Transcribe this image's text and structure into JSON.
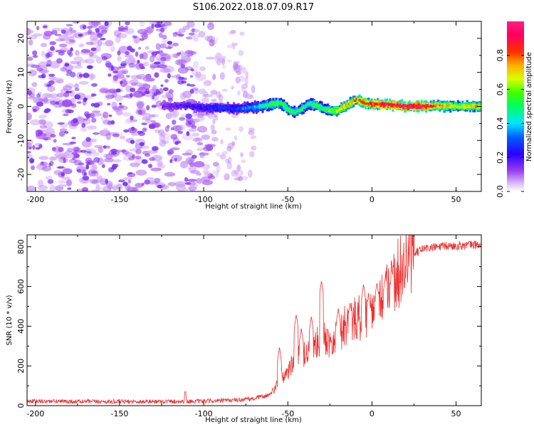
{
  "title": "S106.2022.018.07.09.R17",
  "colors": {
    "snr_line": "#ee3030",
    "axis": "#000000",
    "background": "#ffffff"
  },
  "chart_data": [
    {
      "type": "heatmap",
      "name": "spectrogram",
      "xlabel": "Height of straight line (km)",
      "ylabel": "Frequency (Hz)",
      "xlim": [
        -205,
        65
      ],
      "ylim": [
        -25,
        25
      ],
      "xticks": [
        -200,
        -150,
        -100,
        -50,
        0,
        50
      ],
      "xtick_labels": [
        "-200",
        "-150",
        "-100",
        "-50",
        "0",
        "50"
      ],
      "yticks": [
        -20,
        -10,
        0,
        10,
        20
      ],
      "ytick_labels": [
        "-20",
        "-10",
        "0",
        "10",
        "20"
      ],
      "colormap": "rainbow (violet to red)",
      "colorbar": {
        "label": "Normalized spectral amplitude",
        "range": [
          0,
          1
        ],
        "ticks": [
          0.0,
          0.2,
          0.4,
          0.6,
          0.8
        ],
        "tick_labels": [
          "0.0",
          "0.2",
          "0.4",
          "0.6",
          "0.8"
        ]
      },
      "noise_region_km": [
        -205,
        -95
      ],
      "sparse_noise_region_km": [
        -95,
        -70
      ],
      "signal_band": {
        "start_km": -125,
        "end_km": 65,
        "center_freq_hz": [
          [
            -125,
            0.0
          ],
          [
            -110,
            0.3
          ],
          [
            -100,
            -0.6
          ],
          [
            -90,
            -0.4
          ],
          [
            -80,
            -0.7
          ],
          [
            -70,
            -0.2
          ],
          [
            -60,
            0.6
          ],
          [
            -55,
            1.0
          ],
          [
            -50,
            -1.0
          ],
          [
            -47,
            -1.8
          ],
          [
            -42,
            -0.6
          ],
          [
            -38,
            0.8
          ],
          [
            -33,
            0.2
          ],
          [
            -28,
            -1.0
          ],
          [
            -22,
            -1.4
          ],
          [
            -15,
            0.4
          ],
          [
            -10,
            2.0
          ],
          [
            -5,
            1.0
          ],
          [
            0,
            0.6
          ],
          [
            5,
            0.6
          ],
          [
            10,
            0.5
          ],
          [
            15,
            0.2
          ],
          [
            20,
            0.0
          ],
          [
            30,
            0.0
          ],
          [
            40,
            0.2
          ],
          [
            50,
            0.0
          ],
          [
            60,
            0.0
          ],
          [
            65,
            -0.2
          ]
        ],
        "amplitude": [
          [
            -125,
            0.15
          ],
          [
            -100,
            0.25
          ],
          [
            -80,
            0.3
          ],
          [
            -70,
            0.4
          ],
          [
            -60,
            0.55
          ],
          [
            -50,
            0.55
          ],
          [
            -40,
            0.5
          ],
          [
            -30,
            0.55
          ],
          [
            -20,
            0.7
          ],
          [
            -10,
            0.8
          ],
          [
            0,
            0.9
          ],
          [
            10,
            0.95
          ],
          [
            20,
            1.0
          ],
          [
            30,
            1.0
          ],
          [
            40,
            0.75
          ],
          [
            50,
            0.7
          ],
          [
            60,
            0.75
          ],
          [
            65,
            0.7
          ]
        ]
      }
    },
    {
      "type": "line",
      "name": "snr",
      "xlabel": "Height of straight line (km)",
      "ylabel": "SNR (10 * v/v)",
      "xlim": [
        -205,
        65
      ],
      "ylim": [
        0,
        860
      ],
      "xticks": [
        -200,
        -150,
        -100,
        -50,
        0,
        50
      ],
      "xtick_labels": [
        "-200",
        "-150",
        "-100",
        "-50",
        "0",
        "50"
      ],
      "yticks": [
        0,
        200,
        400,
        600,
        800
      ],
      "ytick_labels": [
        "0",
        "200",
        "400",
        "600",
        "800"
      ],
      "series": [
        {
          "name": "SNR",
          "trend": [
            [
              -205,
              22
            ],
            [
              -150,
              20
            ],
            [
              -100,
              22
            ],
            [
              -80,
              28
            ],
            [
              -70,
              35
            ],
            [
              -60,
              55
            ],
            [
              -55,
              120
            ],
            [
              -50,
              170
            ],
            [
              -45,
              220
            ],
            [
              -40,
              260
            ],
            [
              -35,
              280
            ],
            [
              -30,
              330
            ],
            [
              -25,
              320
            ],
            [
              -20,
              350
            ],
            [
              -15,
              400
            ],
            [
              -10,
              420
            ],
            [
              -5,
              440
            ],
            [
              0,
              470
            ],
            [
              5,
              520
            ],
            [
              10,
              560
            ],
            [
              15,
              640
            ],
            [
              20,
              700
            ],
            [
              25,
              760
            ],
            [
              30,
              790
            ],
            [
              40,
              800
            ],
            [
              50,
              805
            ],
            [
              60,
              810
            ],
            [
              65,
              810
            ]
          ],
          "peaks": [
            [
              -55,
              295
            ],
            [
              -45,
              460
            ],
            [
              -42,
              390
            ],
            [
              -36,
              450
            ],
            [
              -30,
              630
            ],
            [
              -20,
              490
            ],
            [
              -13,
              520
            ],
            [
              -5,
              610
            ],
            [
              -2,
              560
            ],
            [
              3,
              620
            ],
            [
              8,
              650
            ],
            [
              12,
              680
            ],
            [
              -111,
              70
            ]
          ]
        }
      ]
    }
  ]
}
